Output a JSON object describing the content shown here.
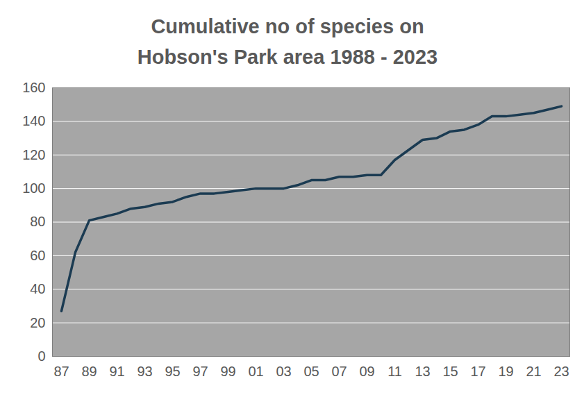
{
  "chart_data": {
    "type": "line",
    "title": "Cumulative no of species on Hobson's Park area 1988 - 2023",
    "categories": [
      "87",
      null,
      "89",
      null,
      "91",
      null,
      "93",
      null,
      "95",
      null,
      "97",
      null,
      "99",
      null,
      "01",
      null,
      "03",
      null,
      "05",
      null,
      "07",
      null,
      "09",
      null,
      "11",
      null,
      "13",
      null,
      "15",
      null,
      "17",
      null,
      "19",
      null,
      "21",
      null,
      "23"
    ],
    "values": [
      27,
      62,
      81,
      83,
      85,
      88,
      89,
      91,
      92,
      95,
      97,
      97,
      98,
      99,
      100,
      100,
      100,
      102,
      105,
      105,
      107,
      107,
      108,
      108,
      117,
      123,
      129,
      130,
      134,
      135,
      138,
      143,
      143,
      144,
      145,
      147,
      149
    ],
    "color": "#1b3b52",
    "ylim": [
      0,
      160
    ],
    "yticks": [
      0,
      20,
      40,
      60,
      80,
      100,
      120,
      140,
      160
    ],
    "grid": true
  }
}
